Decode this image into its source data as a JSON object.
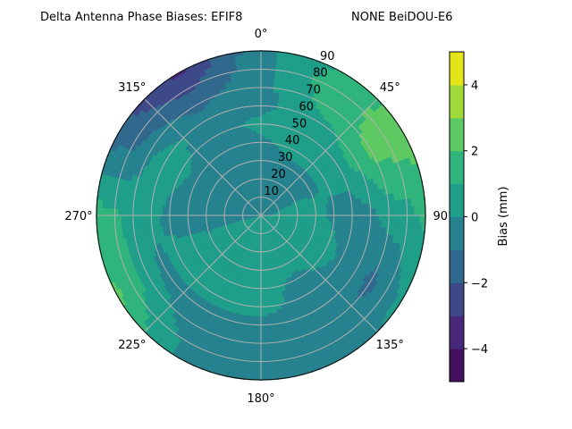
{
  "chart_data": {
    "type": "heatmap",
    "subtype": "polar-filled-contour",
    "title_left": "Delta Antenna Phase Biases: EFIF8",
    "title_right": "NONE BeiDOU-E6",
    "angular_ticks": [
      "0°",
      "45°",
      "90°",
      "135°",
      "180°",
      "225°",
      "270°",
      "315°"
    ],
    "radial_ticks": [
      "10",
      "20",
      "30",
      "40",
      "50",
      "60",
      "70",
      "80",
      "90"
    ],
    "radial_range": [
      0,
      90
    ],
    "theta_direction": "clockwise",
    "theta_zero": "north",
    "grid": true,
    "colormap": "viridis",
    "levels": [
      -5,
      -4,
      -3,
      -2,
      -1,
      0,
      1,
      2,
      3,
      4,
      5
    ],
    "level_colors": [
      "#440f5f",
      "#482878",
      "#3e4989",
      "#31688e",
      "#26828e",
      "#1f9e89",
      "#2fb47c",
      "#5ec962",
      "#a0da39",
      "#e5e419"
    ],
    "colorbar": {
      "label": "Bias (mm)",
      "ticks": [
        "−4",
        "−2",
        "0",
        "2",
        "4"
      ],
      "tick_values": [
        -4,
        -2,
        0,
        2,
        4
      ],
      "range": [
        -5,
        5
      ]
    },
    "azimuth_deg": [
      0,
      30,
      60,
      90,
      120,
      150,
      180,
      210,
      240,
      270,
      300,
      330
    ],
    "radius_deg": [
      0,
      10,
      20,
      30,
      40,
      50,
      60,
      70,
      80,
      90
    ],
    "bias_mm": [
      [
        -0.3,
        -0.3,
        -0.3,
        -0.3,
        -0.2,
        0.3,
        -0.3,
        -0.4,
        -0.3,
        -0.3
      ],
      [
        -0.3,
        -0.3,
        -0.3,
        -0.2,
        0.3,
        0.5,
        0.6,
        1.3,
        1.5,
        1.2
      ],
      [
        -0.3,
        -0.3,
        -0.2,
        -0.3,
        0.3,
        0.5,
        1.5,
        2.3,
        2.5,
        2.5
      ],
      [
        -0.3,
        0.2,
        0.5,
        0.5,
        -0.3,
        -0.5,
        -0.3,
        0.5,
        0.6,
        1.3
      ],
      [
        0.2,
        0.5,
        0.5,
        0.5,
        0.5,
        -0.3,
        -0.5,
        -1.3,
        -0.5,
        0.3
      ],
      [
        0.3,
        0.5,
        0.5,
        0.4,
        -0.3,
        -0.5,
        -0.5,
        -0.6,
        -0.5,
        -0.3
      ],
      [
        0.3,
        0.5,
        0.5,
        0.5,
        0.5,
        0.4,
        -0.3,
        -0.5,
        -0.5,
        -0.5
      ],
      [
        0.3,
        0.5,
        0.5,
        0.5,
        0.5,
        0.3,
        -0.3,
        -0.5,
        -0.3,
        -0.2
      ],
      [
        0.2,
        0.4,
        0.5,
        0.4,
        0.5,
        0.4,
        -0.3,
        0.5,
        1.5,
        2.2
      ],
      [
        -0.3,
        -0.3,
        -0.5,
        -0.5,
        -0.5,
        -0.3,
        0.3,
        0.5,
        1.3,
        1.5
      ],
      [
        -0.3,
        -0.3,
        -0.5,
        -0.3,
        -0.3,
        0.3,
        0.6,
        -0.3,
        -1.3,
        -1.5
      ],
      [
        -0.3,
        -0.4,
        -0.4,
        -0.5,
        -0.5,
        -0.5,
        -0.6,
        -1.3,
        -2.3,
        -3.3
      ]
    ]
  }
}
